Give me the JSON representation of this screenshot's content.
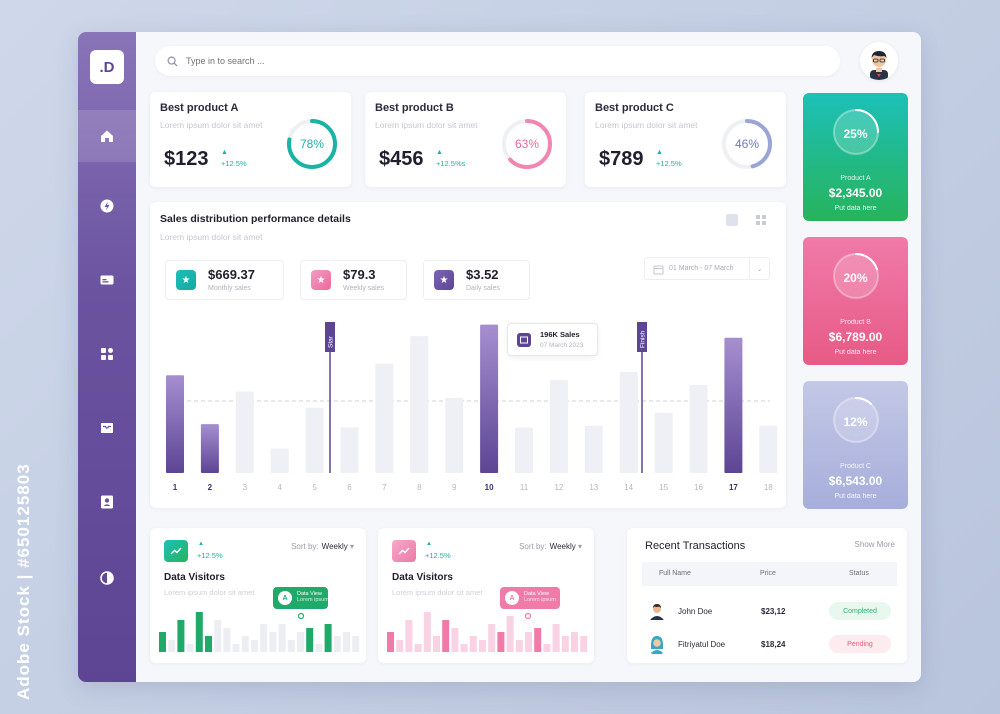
{
  "watermark": "Adobe Stock | #650125803",
  "app": {
    "logo": ".D"
  },
  "sidebar": {
    "items": [
      {
        "name": "home",
        "active": true
      },
      {
        "name": "flash",
        "active": false
      },
      {
        "name": "card",
        "active": false
      },
      {
        "name": "apps",
        "active": false
      },
      {
        "name": "inbox",
        "active": false
      },
      {
        "name": "contacts",
        "active": false
      },
      {
        "name": "theme",
        "active": false
      }
    ]
  },
  "search": {
    "placeholder": "Type in to search ..."
  },
  "products": [
    {
      "title": "Best product A",
      "subtitle": "Lorem ipsum dolor sit amet",
      "value": "$123",
      "change": "+12.5%",
      "percent": "78%",
      "pct": 78,
      "color": "#1bb3a6"
    },
    {
      "title": "Best product B",
      "subtitle": "Lorem ipsum dolor sit amet",
      "value": "$456",
      "change": "+12.5%s",
      "percent": "63%",
      "pct": 63,
      "color": "#f286b3"
    },
    {
      "title": "Best product C",
      "subtitle": "Lorem ipsum dolor sit amet",
      "value": "$789",
      "change": "+12.5%",
      "percent": "46%",
      "pct": 46,
      "color": "#9ba4d6"
    }
  ],
  "side_cards": [
    {
      "percent": "25%",
      "pct": 25,
      "name": "Product A",
      "value": "$2,345.00",
      "note": "Put data here"
    },
    {
      "percent": "20%",
      "pct": 20,
      "name": "Product B",
      "value": "$6,789.00",
      "note": "Put data here"
    },
    {
      "percent": "12%",
      "pct": 12,
      "name": "Product C",
      "value": "$6,543.00",
      "note": "Put data here"
    }
  ],
  "sales": {
    "title": "Sales distribution performance details",
    "subtitle": "Lorem ipsum dolor sit amet",
    "date_range": "01 March - 07 March",
    "stats": [
      {
        "value": "$669.37",
        "label": "Monthly sales"
      },
      {
        "value": "$79.3",
        "label": "Weekly sales"
      },
      {
        "value": "$3.52",
        "label": "Daily sales"
      }
    ],
    "tooltip": {
      "title": "196K Sales",
      "date": "07 March 2023"
    },
    "markers": {
      "start": "Star",
      "finish": "Finish"
    }
  },
  "chart_data": [
    {
      "type": "bar",
      "title": "Sales distribution performance details",
      "categories": [
        "1",
        "2",
        "3",
        "4",
        "5",
        "6",
        "7",
        "8",
        "9",
        "10",
        "11",
        "12",
        "13",
        "14",
        "15",
        "16",
        "17",
        "18"
      ],
      "values": [
        60,
        30,
        50,
        15,
        40,
        28,
        67,
        84,
        46,
        91,
        28,
        57,
        29,
        62,
        37,
        54,
        83,
        29
      ],
      "highlighted": [
        "1",
        "2",
        "10",
        "17"
      ],
      "ylim": [
        0,
        100
      ]
    },
    {
      "type": "bar",
      "title": "Data Visitors",
      "values": [
        25,
        15,
        40,
        10,
        50,
        20,
        40,
        30,
        10,
        20,
        15,
        35,
        25,
        35,
        15,
        25,
        30,
        10,
        35,
        20,
        25,
        20
      ],
      "highlighted": [
        0,
        2,
        4,
        5,
        16,
        18
      ],
      "ylim": [
        0,
        60
      ]
    },
    {
      "type": "bar",
      "title": "Data Visitors",
      "values": [
        25,
        15,
        40,
        10,
        50,
        20,
        40,
        30,
        10,
        20,
        15,
        35,
        25,
        45,
        15,
        25,
        30,
        10,
        35,
        20,
        25,
        20
      ],
      "highlighted": [
        0,
        6,
        12,
        16
      ],
      "ylim": [
        0,
        60
      ]
    }
  ],
  "visitors": [
    {
      "change": "+12.5%",
      "sort_label": "Sort by:",
      "sort_value": "Weekly",
      "title": "Data Visitors",
      "subtitle": "Lorem ipsum dolor sit amet",
      "tip_title": "Data View",
      "tip_sub": "Lorem ipsum",
      "tip_letter": "A"
    },
    {
      "change": "+12.5%",
      "sort_label": "Sort by:",
      "sort_value": "Weekly",
      "title": "Data Visitors",
      "subtitle": "Lorem ipsum dolor sit amet",
      "tip_title": "Data View",
      "tip_sub": "Lorem ipsum",
      "tip_letter": "A"
    }
  ],
  "transactions": {
    "title": "Recent Transactions",
    "show_more": "Show More",
    "headers": [
      "Full Name",
      "Price",
      "Status"
    ],
    "rows": [
      {
        "name": "John Doe",
        "price": "$23,12",
        "status": "Completed"
      },
      {
        "name": "Fitriyatul Doe",
        "price": "$18,24",
        "status": "Pending"
      }
    ]
  },
  "colors": {
    "purple": "#5d4594",
    "teal": "#1bb3a6",
    "pink": "#f07aa8",
    "lavender": "#aeb5dd",
    "green": "#1faa6a"
  }
}
